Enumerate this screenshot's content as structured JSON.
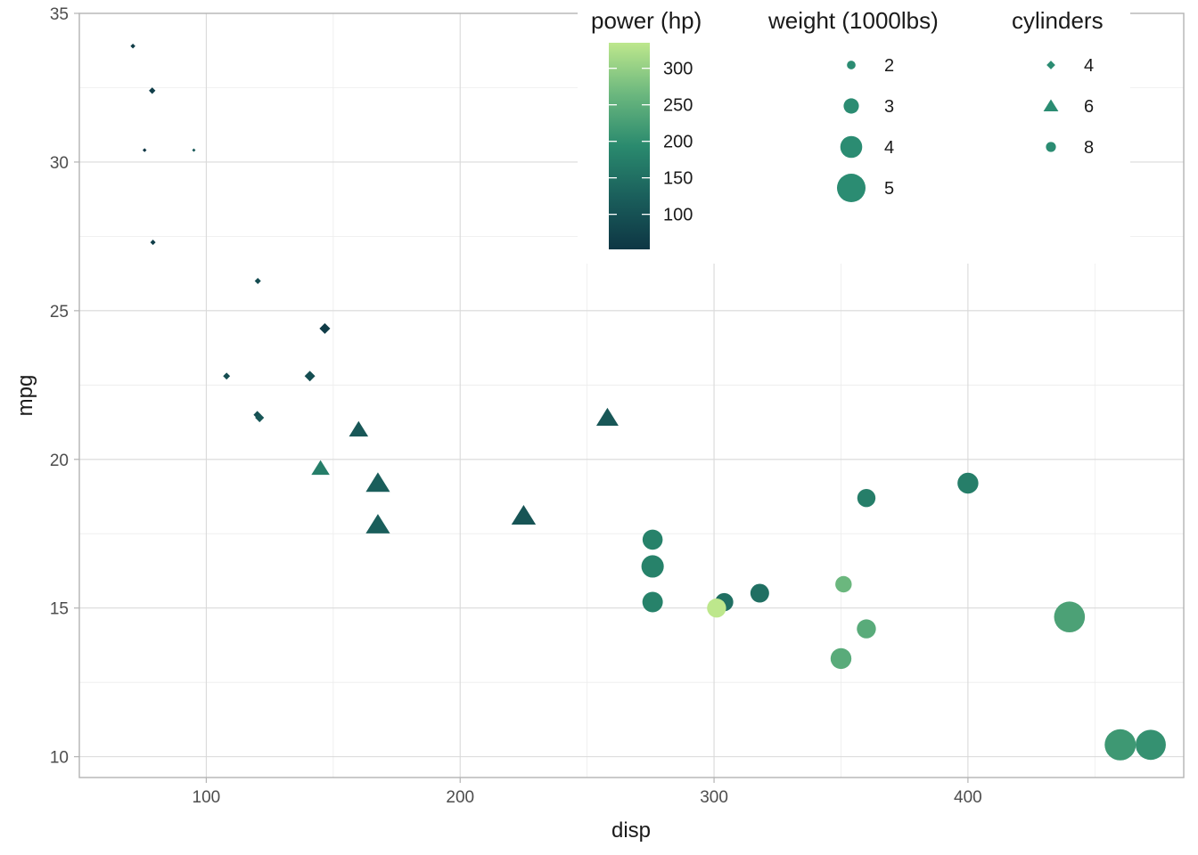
{
  "chart_data": {
    "type": "scatter",
    "xlabel": "disp",
    "ylabel": "mpg",
    "xlim": [
      50,
      485
    ],
    "ylim": [
      9.3,
      35.0
    ],
    "x_ticks": [
      100,
      200,
      300,
      400
    ],
    "y_ticks": [
      10,
      15,
      20,
      25,
      30,
      35
    ],
    "grid": true,
    "legend_placement": "top-right",
    "color_scale": {
      "title": "power (hp)",
      "range": [
        52,
        335
      ],
      "ticks": [
        100,
        150,
        200,
        250,
        300
      ],
      "colors": [
        "#0e3644",
        "#1a5e5b",
        "#2a8a6e",
        "#6bb77e",
        "#bde78c"
      ]
    },
    "size_scale": {
      "title": "weight (1000lbs)",
      "range": [
        1.5,
        5.4
      ],
      "ticks": [
        2,
        3,
        4,
        5
      ]
    },
    "shape_scale": {
      "title": "cylinders",
      "values": [
        "4",
        "6",
        "8"
      ],
      "shapes": [
        "diamond",
        "triangle",
        "circle"
      ]
    },
    "points": [
      {
        "disp": 160,
        "mpg": 21.0,
        "hp": 110,
        "wt": 2.62,
        "cyl": "6"
      },
      {
        "disp": 160,
        "mpg": 21.0,
        "hp": 110,
        "wt": 2.875,
        "cyl": "6"
      },
      {
        "disp": 108,
        "mpg": 22.8,
        "hp": 93,
        "wt": 2.32,
        "cyl": "4"
      },
      {
        "disp": 258,
        "mpg": 21.4,
        "hp": 110,
        "wt": 3.215,
        "cyl": "6"
      },
      {
        "disp": 360,
        "mpg": 18.7,
        "hp": 175,
        "wt": 3.44,
        "cyl": "8"
      },
      {
        "disp": 225,
        "mpg": 18.1,
        "hp": 105,
        "wt": 3.46,
        "cyl": "6"
      },
      {
        "disp": 360,
        "mpg": 14.3,
        "hp": 245,
        "wt": 3.57,
        "cyl": "8"
      },
      {
        "disp": 146.7,
        "mpg": 24.4,
        "hp": 62,
        "wt": 3.19,
        "cyl": "4"
      },
      {
        "disp": 140.8,
        "mpg": 22.8,
        "hp": 95,
        "wt": 3.15,
        "cyl": "4"
      },
      {
        "disp": 167.6,
        "mpg": 19.2,
        "hp": 123,
        "wt": 3.44,
        "cyl": "6"
      },
      {
        "disp": 167.6,
        "mpg": 17.8,
        "hp": 123,
        "wt": 3.44,
        "cyl": "6"
      },
      {
        "disp": 275.8,
        "mpg": 16.4,
        "hp": 180,
        "wt": 4.07,
        "cyl": "8"
      },
      {
        "disp": 275.8,
        "mpg": 17.3,
        "hp": 180,
        "wt": 3.73,
        "cyl": "8"
      },
      {
        "disp": 275.8,
        "mpg": 15.2,
        "hp": 180,
        "wt": 3.78,
        "cyl": "8"
      },
      {
        "disp": 472,
        "mpg": 10.4,
        "hp": 205,
        "wt": 5.25,
        "cyl": "8"
      },
      {
        "disp": 460,
        "mpg": 10.4,
        "hp": 215,
        "wt": 5.424,
        "cyl": "8"
      },
      {
        "disp": 440,
        "mpg": 14.7,
        "hp": 230,
        "wt": 5.345,
        "cyl": "8"
      },
      {
        "disp": 78.7,
        "mpg": 32.4,
        "hp": 66,
        "wt": 2.2,
        "cyl": "4"
      },
      {
        "disp": 75.7,
        "mpg": 30.4,
        "hp": 52,
        "wt": 1.615,
        "cyl": "4"
      },
      {
        "disp": 71.1,
        "mpg": 33.9,
        "hp": 65,
        "wt": 1.835,
        "cyl": "4"
      },
      {
        "disp": 120.1,
        "mpg": 21.5,
        "hp": 97,
        "wt": 2.465,
        "cyl": "4"
      },
      {
        "disp": 318,
        "mpg": 15.5,
        "hp": 150,
        "wt": 3.52,
        "cyl": "8"
      },
      {
        "disp": 304,
        "mpg": 15.2,
        "hp": 150,
        "wt": 3.435,
        "cyl": "8"
      },
      {
        "disp": 350,
        "mpg": 13.3,
        "hp": 245,
        "wt": 3.84,
        "cyl": "8"
      },
      {
        "disp": 400,
        "mpg": 19.2,
        "hp": 175,
        "wt": 3.845,
        "cyl": "8"
      },
      {
        "disp": 79,
        "mpg": 27.3,
        "hp": 66,
        "wt": 1.935,
        "cyl": "4"
      },
      {
        "disp": 120.3,
        "mpg": 26.0,
        "hp": 91,
        "wt": 2.14,
        "cyl": "4"
      },
      {
        "disp": 95.1,
        "mpg": 30.4,
        "hp": 113,
        "wt": 1.513,
        "cyl": "4"
      },
      {
        "disp": 351,
        "mpg": 15.8,
        "hp": 264,
        "wt": 3.17,
        "cyl": "8"
      },
      {
        "disp": 145,
        "mpg": 19.7,
        "hp": 175,
        "wt": 2.77,
        "cyl": "6"
      },
      {
        "disp": 301,
        "mpg": 15.0,
        "hp": 335,
        "wt": 3.57,
        "cyl": "8"
      },
      {
        "disp": 121,
        "mpg": 21.4,
        "hp": 109,
        "wt": 2.78,
        "cyl": "4"
      }
    ]
  }
}
